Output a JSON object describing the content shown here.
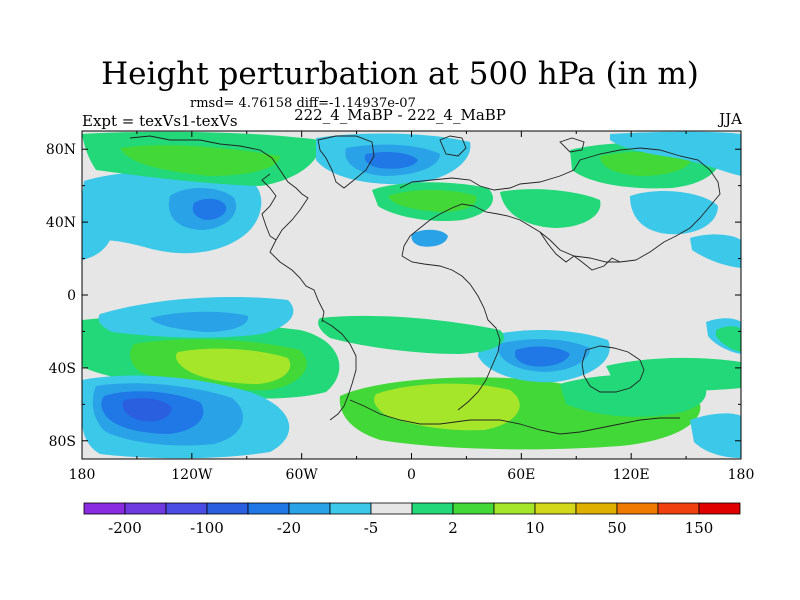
{
  "title": "Height perturbation at 500 hPa (in m)",
  "stats": "rmsd= 4.76158 diff=-1.14937e-07",
  "expt": "Expt = texVs1-texVs",
  "case": "222_4_MaBP - 222_4_MaBP",
  "season": "JJA",
  "colors": {
    "background": "#e6e6e6",
    "palette": [
      "#8a2be2",
      "#6f3be0",
      "#4b4ce3",
      "#2a5fe0",
      "#1f78e6",
      "#2aa2e8",
      "#3cc8e8",
      "#e6e6e6",
      "#22d878",
      "#42d838",
      "#a6e62a",
      "#d4d81a",
      "#e0b000",
      "#f07a00",
      "#f04010",
      "#e00000"
    ]
  },
  "chart_data": {
    "type": "filled-contour map",
    "variable": "Height perturbation at 500 hPa",
    "units": "m",
    "x_axis": {
      "range": [
        -180,
        180
      ],
      "tick_values": [
        -180,
        -120,
        -60,
        0,
        60,
        120,
        180
      ],
      "tick_labels": [
        "180",
        "120W",
        "60W",
        "0",
        "60E",
        "120E",
        "180"
      ]
    },
    "y_axis": {
      "range": [
        -90,
        90
      ],
      "tick_values": [
        80,
        40,
        0,
        -40,
        -80
      ],
      "tick_labels": [
        "80N",
        "40N",
        "0",
        "40S",
        "80S"
      ]
    },
    "colorbar": {
      "bins": 16,
      "labels": [
        "-200",
        "-100",
        "-20",
        "-5",
        "2",
        "10",
        "50",
        "150"
      ],
      "label_after_bin": [
        1,
        3,
        5,
        7,
        9,
        11,
        13,
        15
      ]
    },
    "features": [
      {
        "name": "north-pacific-negative",
        "lon": -143,
        "lat": 48,
        "level": -20
      },
      {
        "name": "arctic-positive-west",
        "lon": -110,
        "lat": 72,
        "level": 5
      },
      {
        "name": "arctic-negative-center",
        "lon": 10,
        "lat": 76,
        "level": -20
      },
      {
        "name": "south-pacific-low",
        "lon": -150,
        "lat": -63,
        "level": -100
      },
      {
        "name": "south-pacific-positive",
        "lon": -100,
        "lat": -38,
        "level": 10
      },
      {
        "name": "southern-ocean-high",
        "lon": 30,
        "lat": -62,
        "level": 10
      },
      {
        "name": "south-atlantic-indian-negative",
        "lon": 65,
        "lat": -35,
        "level": -20
      }
    ]
  }
}
